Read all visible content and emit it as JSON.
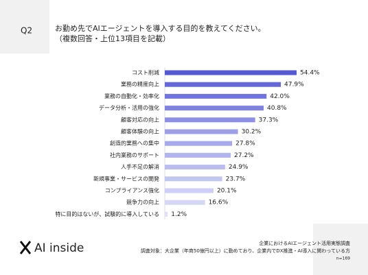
{
  "question": "Q2",
  "chart_data": {
    "type": "bar",
    "orientation": "horizontal",
    "title": "お勤め先でAIエージェントを導入する目的を教えてください。",
    "subtitle": "（複数回答・上位13項目を記載）",
    "categories": [
      "コスト削減",
      "業務の精度向上",
      "業務の自動化・効率化",
      "データ分析・活用の強化",
      "顧客対応の向上",
      "顧客体験の向上",
      "創造的業務への集中",
      "社内業務のサポート",
      "人手不足の解消",
      "新規事業・サービスの開発",
      "コンプライアンス強化",
      "競争力の向上",
      "特に目的はないが、試験的に導入している"
    ],
    "values": [
      54.4,
      47.9,
      42.0,
      40.8,
      37.3,
      30.2,
      27.8,
      27.2,
      24.9,
      23.7,
      20.1,
      16.6,
      1.2
    ],
    "value_labels": [
      "54.4%",
      "47.9%",
      "42.0%",
      "40.8%",
      "37.3%",
      "30.2%",
      "27.8%",
      "27.2%",
      "24.9%",
      "23.7%",
      "20.1%",
      "16.6%",
      "1.2%"
    ],
    "colors": [
      "#5458d2",
      "#6569d8",
      "#7276dc",
      "#7e82e0",
      "#8c8fe3",
      "#9c9fe8",
      "#a7aaea",
      "#b1b4ed",
      "#bbbdf0",
      "#c4c6f2",
      "#cdcff4",
      "#d5d7f6",
      "#dfe0f8"
    ]
  },
  "brand": "AI inside",
  "footer": {
    "source": "企業におけるAIエージェント活用実態調査",
    "target": "調査対象：大企業（年商50億円以上）に勤めており、企業内でDX推進・AI導入に関わっている方",
    "sample": "n=169"
  }
}
